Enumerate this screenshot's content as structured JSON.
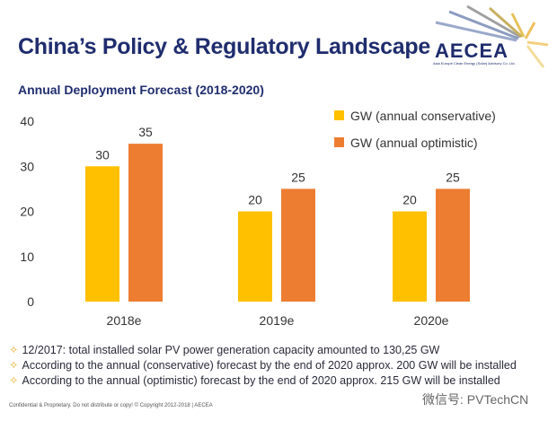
{
  "header": {
    "title": "China’s Policy & Regulatory Landscape",
    "subtitle": "Annual Deployment Forecast (2018-2020)"
  },
  "logo": {
    "name": "AECEA",
    "tagline": "Asia Europe Clean Energy (Solar) Advisory Co. Ltd."
  },
  "chart_data": {
    "type": "bar",
    "categories": [
      "2018e",
      "2019e",
      "2020e"
    ],
    "series": [
      {
        "name": "GW (annual conservative)",
        "values": [
          30,
          20,
          20
        ],
        "color": "#ffc000"
      },
      {
        "name": "GW (annual optimistic)",
        "values": [
          35,
          25,
          25
        ],
        "color": "#ed7d31"
      }
    ],
    "ylim": [
      0,
      40
    ],
    "yticks": [
      0,
      10,
      20,
      30,
      40
    ],
    "legend": "top-right",
    "grid": false
  },
  "bullets": [
    "12/2017: total installed solar PV power generation capacity amounted to 130,25 GW",
    "According to the annual (conservative) forecast by the end of 2020 approx. 200 GW will be installed",
    "According to the annual (optimistic) forecast by the end of 2020 approx. 215 GW will be installed"
  ],
  "bullet_icon": "diamond-bullet-icon",
  "footer": "Confidential & Proprietary. Do not distribute or copy! © Copyright 2012-2018 | AECEA",
  "watermark": "微信号: PVTechCN"
}
